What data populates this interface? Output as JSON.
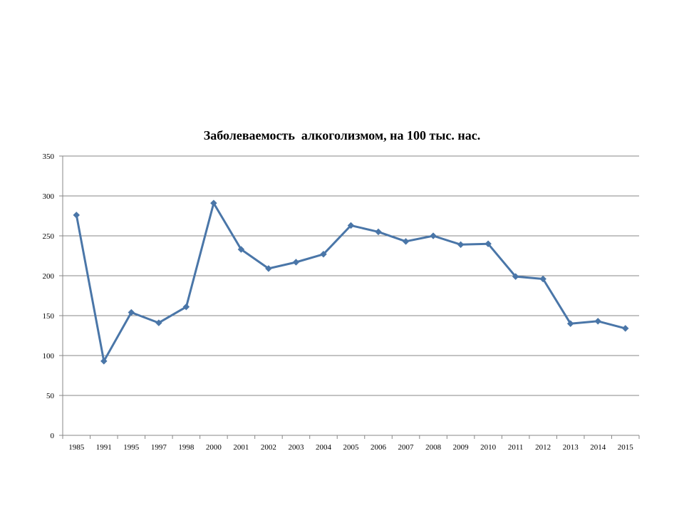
{
  "chart_data": {
    "type": "line",
    "title": "Заболеваемость  алкоголизмом, на 100 тыс. нас.",
    "xlabel": "",
    "ylabel": "",
    "categories": [
      "1985",
      "1991",
      "1995",
      "1997",
      "1998",
      "2000",
      "2001",
      "2002",
      "2003",
      "2004",
      "2005",
      "2006",
      "2007",
      "2008",
      "2009",
      "2010",
      "2011",
      "2012",
      "2013",
      "2014",
      "2015"
    ],
    "series": [
      {
        "values": [
          276,
          93,
          154,
          141,
          161,
          291,
          233,
          209,
          217,
          227,
          263,
          255,
          243,
          250,
          239,
          240,
          199,
          196,
          140,
          143,
          134
        ]
      }
    ],
    "ylim": [
      0,
      350
    ],
    "yticks": [
      0,
      50,
      100,
      150,
      200,
      250,
      300,
      350
    ],
    "grid": true,
    "legend": "none",
    "colors": {
      "line": "#4a76a8",
      "grid": "#878787",
      "axis": "#878787"
    },
    "marker": "diamond"
  }
}
